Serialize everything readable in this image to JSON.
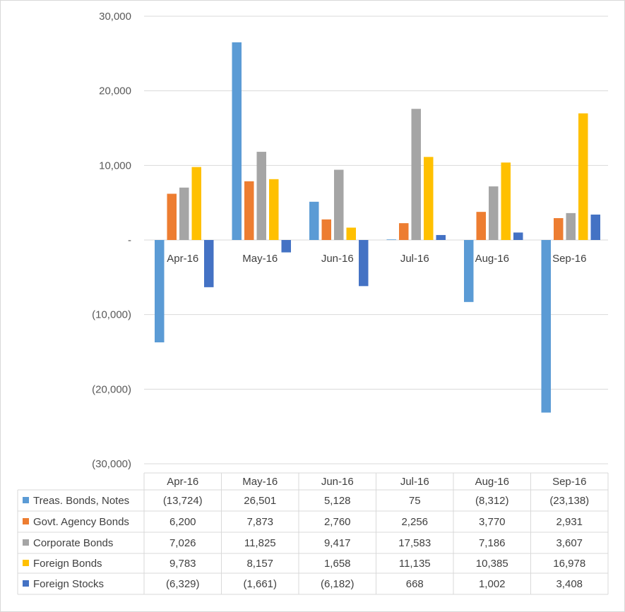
{
  "chart_data": {
    "type": "bar",
    "categories": [
      "Apr-16",
      "May-16",
      "Jun-16",
      "Jul-16",
      "Aug-16",
      "Sep-16"
    ],
    "series": [
      {
        "name": "Treas. Bonds, Notes",
        "color": "#5b9bd5",
        "values": [
          -13724,
          26501,
          5128,
          75,
          -8312,
          -23138
        ],
        "labels": [
          "(13,724)",
          "26,501",
          "5,128",
          "75",
          "(8,312)",
          "(23,138)"
        ]
      },
      {
        "name": "Govt. Agency Bonds",
        "color": "#ed7d31",
        "values": [
          6200,
          7873,
          2760,
          2256,
          3770,
          2931
        ],
        "labels": [
          "6,200",
          "7,873",
          "2,760",
          "2,256",
          "3,770",
          "2,931"
        ]
      },
      {
        "name": "Corporate Bonds",
        "color": "#a5a5a5",
        "values": [
          7026,
          11825,
          9417,
          17583,
          7186,
          3607
        ],
        "labels": [
          "7,026",
          "11,825",
          "9,417",
          "17,583",
          "7,186",
          "3,607"
        ]
      },
      {
        "name": "Foreign Bonds",
        "color": "#ffc000",
        "values": [
          9783,
          8157,
          1658,
          11135,
          10385,
          16978
        ],
        "labels": [
          "9,783",
          "8,157",
          "1,658",
          "11,135",
          "10,385",
          "16,978"
        ]
      },
      {
        "name": "Foreign Stocks",
        "color": "#4472c4",
        "values": [
          -6329,
          -1661,
          -6182,
          668,
          1002,
          3408
        ],
        "labels": [
          "(6,329)",
          "(1,661)",
          "(6,182)",
          "668",
          "1,002",
          "3,408"
        ]
      }
    ],
    "ylim": [
      -30000,
      30000
    ],
    "yticks": [
      30000,
      20000,
      10000,
      0,
      -10000,
      -20000,
      -30000
    ],
    "ytick_labels": [
      "30,000",
      "20,000",
      "10,000",
      "-",
      "(10,000)",
      "(20,000)",
      "(30,000)"
    ],
    "grid": true,
    "legend": "data-table-below"
  }
}
